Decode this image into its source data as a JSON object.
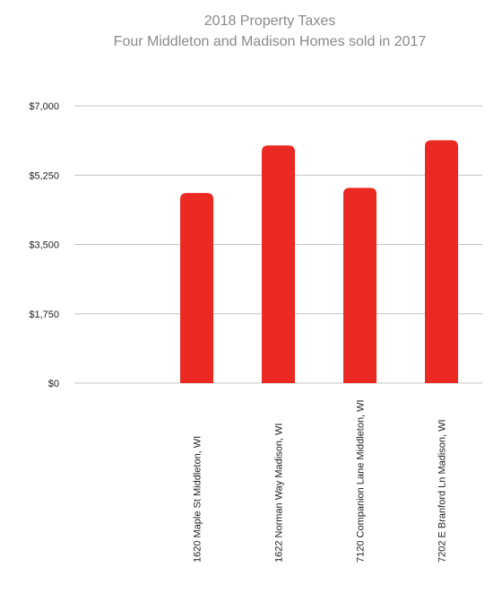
{
  "chart_data": {
    "type": "bar",
    "title": "2018 Property Taxes",
    "subtitle": "Four Middleton and Madison Homes sold in 2017",
    "xlabel": "",
    "ylabel": "",
    "categories": [
      "",
      "1620 Maple St Middleton, WI",
      "1622 Norman Way Madison, WI",
      "7120 Companion Lane Middleton, WI",
      "7202 E Branford Ln Madison, WI"
    ],
    "values": [
      null,
      4800,
      6000,
      4930,
      6130
    ],
    "ylim": [
      0,
      7000
    ],
    "yticks": [
      0,
      1750,
      3500,
      5250,
      7000
    ],
    "ytick_labels": [
      "$0",
      "$1,750",
      "$3,500",
      "$5,250",
      "$7,000"
    ],
    "grid": true,
    "legend": "none",
    "bar_color": "#ea2a22",
    "grid_color": "#c4c4c4",
    "title_color": "#8a8a8a"
  }
}
